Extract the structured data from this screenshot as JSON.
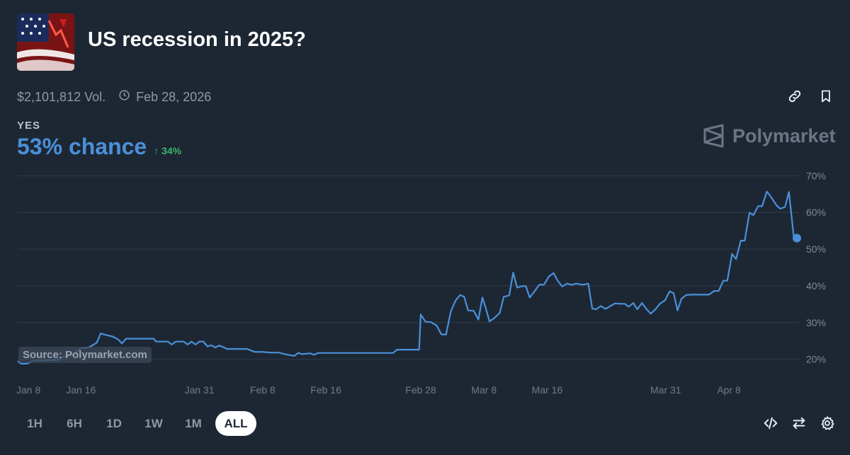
{
  "market": {
    "title": "US recession in 2025?",
    "volume": "$2,101,812 Vol.",
    "end_date": "Feb 28, 2026",
    "outcome": "YES",
    "chance": "53% chance",
    "delta": "↑ 34%",
    "brand": "Polymarket"
  },
  "chart": {
    "source": "Source: Polymarket.com"
  },
  "ranges": [
    "1H",
    "6H",
    "1D",
    "1W",
    "1M",
    "ALL"
  ],
  "active_range": "ALL",
  "colors": {
    "background": "#1d2734",
    "line": "#4a90d9",
    "positive": "#3db468",
    "grid": "#2f3b4a"
  },
  "icons": [
    "link-icon",
    "bookmark-icon",
    "clock-icon",
    "polymarket-logo-icon",
    "embed-code-icon",
    "swap-icon",
    "settings-icon"
  ],
  "chart_data": {
    "type": "line",
    "title": "",
    "xlabel": "",
    "ylabel": "",
    "ylim": [
      18,
      72
    ],
    "yticks": [
      20,
      30,
      40,
      50,
      60,
      70
    ],
    "ytick_labels": [
      "20%",
      "30%",
      "40%",
      "50%",
      "60%",
      "70%"
    ],
    "xtick_labels": [
      {
        "label": "Jan 8",
        "day": 0
      },
      {
        "label": "Jan 16",
        "day": 8
      },
      {
        "label": "Jan 31",
        "day": 23
      },
      {
        "label": "Feb 8",
        "day": 31
      },
      {
        "label": "Feb 16",
        "day": 39
      },
      {
        "label": "Feb 28",
        "day": 51
      },
      {
        "label": "Mar 8",
        "day": 59
      },
      {
        "label": "Mar 16",
        "day": 67
      },
      {
        "label": "Mar 31",
        "day": 82
      },
      {
        "label": "Apr 8",
        "day": 90
      }
    ],
    "x_unit": "days since Jan 8",
    "series": [
      {
        "values": [
          [
            0,
            19.5
          ],
          [
            0.4,
            18.8
          ],
          [
            1.2,
            18.8
          ],
          [
            2,
            19.6
          ],
          [
            3,
            19.7
          ],
          [
            4,
            19.7
          ],
          [
            5,
            19.8
          ],
          [
            6,
            20.8
          ],
          [
            7,
            21.2
          ],
          [
            8,
            23.0
          ],
          [
            9,
            23.2
          ],
          [
            10,
            24.5
          ],
          [
            10.5,
            27.0
          ],
          [
            11.2,
            26.6
          ],
          [
            12,
            26.2
          ],
          [
            12.7,
            25.4
          ],
          [
            13.2,
            24.3
          ],
          [
            13.7,
            25.6
          ],
          [
            14.5,
            25.6
          ],
          [
            15.5,
            25.6
          ],
          [
            16.5,
            25.6
          ],
          [
            17.2,
            25.6
          ],
          [
            17.5,
            24.8
          ],
          [
            18.5,
            24.8
          ],
          [
            19,
            24.8
          ],
          [
            19.5,
            24.0
          ],
          [
            20,
            24.8
          ],
          [
            21,
            24.8
          ],
          [
            21.5,
            24.0
          ],
          [
            22,
            24.8
          ],
          [
            22.5,
            24.0
          ],
          [
            23,
            24.8
          ],
          [
            23.5,
            24.8
          ],
          [
            24,
            23.5
          ],
          [
            24.5,
            23.8
          ],
          [
            25,
            23.2
          ],
          [
            25.5,
            23.7
          ],
          [
            26,
            23.3
          ],
          [
            26.5,
            22.8
          ],
          [
            27,
            22.8
          ],
          [
            28,
            22.8
          ],
          [
            29,
            22.8
          ],
          [
            30,
            22.0
          ],
          [
            31,
            22.0
          ],
          [
            32,
            21.8
          ],
          [
            33,
            21.8
          ],
          [
            34,
            21.3
          ],
          [
            35,
            20.9
          ],
          [
            35.5,
            21.7
          ],
          [
            36,
            21.4
          ],
          [
            37,
            21.6
          ],
          [
            37.5,
            21.2
          ],
          [
            38,
            21.7
          ],
          [
            39,
            21.7
          ],
          [
            40,
            21.7
          ],
          [
            42,
            21.7
          ],
          [
            44,
            21.7
          ],
          [
            46,
            21.7
          ],
          [
            47.5,
            21.7
          ],
          [
            48,
            22.6
          ],
          [
            49,
            22.6
          ],
          [
            50,
            22.6
          ],
          [
            50.8,
            22.6
          ],
          [
            51,
            32.2
          ],
          [
            51.6,
            30.2
          ],
          [
            52.3,
            30.1
          ],
          [
            53,
            29.2
          ],
          [
            53.6,
            26.8
          ],
          [
            54.2,
            26.7
          ],
          [
            54.8,
            33.0
          ],
          [
            55.4,
            36.0
          ],
          [
            56,
            37.5
          ],
          [
            56.5,
            37.0
          ],
          [
            57,
            33.3
          ],
          [
            57.7,
            33.2
          ],
          [
            58.3,
            30.8
          ],
          [
            58.8,
            36.8
          ],
          [
            59.2,
            34.2
          ],
          [
            59.7,
            30.3
          ],
          [
            60.3,
            31.2
          ],
          [
            61,
            32.6
          ],
          [
            61.5,
            37.0
          ],
          [
            62.2,
            37.4
          ],
          [
            62.7,
            43.6
          ],
          [
            63.2,
            39.5
          ],
          [
            63.8,
            39.9
          ],
          [
            64.3,
            39.9
          ],
          [
            64.8,
            36.8
          ],
          [
            65.4,
            38.5
          ],
          [
            66,
            40.3
          ],
          [
            66.6,
            40.3
          ],
          [
            67.2,
            42.5
          ],
          [
            67.8,
            43.5
          ],
          [
            68.3,
            41.5
          ],
          [
            68.9,
            39.8
          ],
          [
            69.5,
            40.6
          ],
          [
            70.1,
            40.3
          ],
          [
            70.7,
            40.6
          ],
          [
            71.5,
            40.3
          ],
          [
            72.2,
            40.6
          ],
          [
            72.7,
            33.8
          ],
          [
            73.2,
            33.6
          ],
          [
            73.8,
            34.5
          ],
          [
            74.4,
            33.7
          ],
          [
            75,
            34.5
          ],
          [
            75.6,
            35.2
          ],
          [
            76.2,
            35.1
          ],
          [
            76.8,
            35.1
          ],
          [
            77.3,
            34.3
          ],
          [
            77.9,
            35.3
          ],
          [
            78.4,
            33.6
          ],
          [
            79,
            35.3
          ],
          [
            79.6,
            33.6
          ],
          [
            80.1,
            32.4
          ],
          [
            80.7,
            33.6
          ],
          [
            81.3,
            35.2
          ],
          [
            81.9,
            36.0
          ],
          [
            82.5,
            38.5
          ],
          [
            83,
            38.0
          ],
          [
            83.5,
            33.3
          ],
          [
            84,
            36.5
          ],
          [
            84.6,
            37.5
          ],
          [
            85.2,
            37.6
          ],
          [
            86,
            37.6
          ],
          [
            86.8,
            37.6
          ],
          [
            87.5,
            37.6
          ],
          [
            88.1,
            38.6
          ],
          [
            88.7,
            38.6
          ],
          [
            89.3,
            41.4
          ],
          [
            89.8,
            41.4
          ],
          [
            90.4,
            48.7
          ],
          [
            90.9,
            47.3
          ],
          [
            91.5,
            52.3
          ],
          [
            92,
            52.3
          ],
          [
            92.6,
            59.9
          ],
          [
            93.1,
            59.3
          ],
          [
            93.7,
            61.7
          ],
          [
            94.2,
            61.7
          ],
          [
            94.8,
            65.7
          ],
          [
            95.4,
            64.0
          ],
          [
            96,
            62.0
          ],
          [
            96.5,
            61.0
          ],
          [
            97.1,
            61.5
          ],
          [
            97.6,
            65.6
          ],
          [
            98.2,
            53.5
          ],
          [
            98.6,
            53.0
          ]
        ]
      }
    ],
    "current_value": 53
  }
}
